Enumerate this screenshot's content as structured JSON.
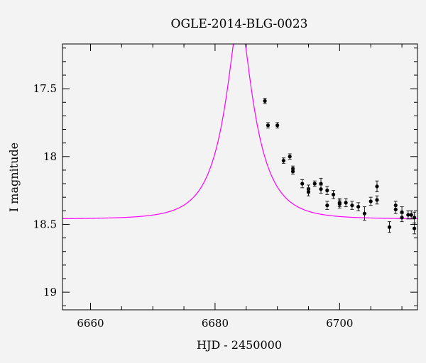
{
  "chart_data": {
    "type": "scatter",
    "title": "OGLE-2014-BLG-0023",
    "xlabel": "HJD - 2450000",
    "ylabel": "I magnitude",
    "xlim": [
      6655.5,
      6712.5
    ],
    "ylim": [
      19.13,
      17.17
    ],
    "y_inverted": true,
    "x_ticks": [
      6660,
      6680,
      6700
    ],
    "x_tick_labels": [
      "6660",
      "6680",
      "6700"
    ],
    "y_ticks": [
      17.5,
      18,
      18.5,
      19
    ],
    "y_tick_labels": [
      "17.5",
      "18",
      "18.5",
      "19"
    ],
    "colors": {
      "model": "#ff00ff",
      "points": "#000000",
      "frame": "#000000",
      "background": "#f3f3f3"
    },
    "series": [
      {
        "type": "errorbar",
        "x": [
          6688.0,
          6688.5,
          6690.0,
          6691.0,
          6692.0,
          6692.5,
          6692.5,
          6694.0,
          6695.0,
          6695.0,
          6696.0,
          6697.0,
          6697.0,
          6698.0,
          6698.0,
          6699.0,
          6700.0,
          6700.0,
          6701.0,
          6702.0,
          6703.0,
          6704.0,
          6705.0,
          6706.0,
          6706.0,
          6708.0,
          6709.0,
          6709.0,
          6710.0,
          6710.0,
          6711.0,
          6711.5,
          6712.0,
          6712.0
        ],
        "y": [
          17.59,
          17.77,
          17.77,
          18.03,
          18.0,
          18.09,
          18.11,
          18.2,
          18.24,
          18.26,
          18.2,
          18.2,
          18.24,
          18.25,
          18.36,
          18.28,
          18.34,
          18.35,
          18.34,
          18.36,
          18.37,
          18.42,
          18.33,
          18.22,
          18.32,
          18.52,
          18.36,
          18.39,
          18.41,
          18.45,
          18.43,
          18.43,
          18.45,
          18.53
        ],
        "err": [
          0.02,
          0.02,
          0.02,
          0.02,
          0.02,
          0.02,
          0.02,
          0.03,
          0.03,
          0.03,
          0.02,
          0.04,
          0.03,
          0.03,
          0.03,
          0.03,
          0.03,
          0.03,
          0.03,
          0.03,
          0.03,
          0.05,
          0.03,
          0.04,
          0.03,
          0.04,
          0.03,
          0.03,
          0.04,
          0.03,
          0.03,
          0.03,
          0.04,
          0.04
        ]
      },
      {
        "type": "line",
        "model": "single-lens microlensing fit",
        "t0": 6683.9,
        "u0": 0.26,
        "tE": 5.35,
        "mag_baseline": 18.46,
        "x_range": [
          6655.5,
          6712.5
        ]
      }
    ],
    "grid": false
  }
}
